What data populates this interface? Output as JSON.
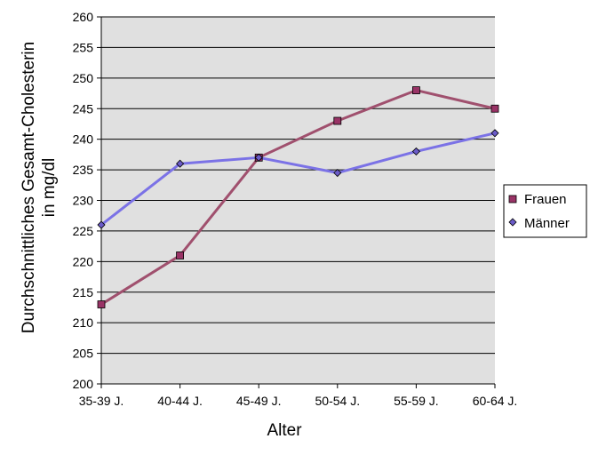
{
  "chart_data": {
    "type": "line",
    "xlabel": "Alter",
    "ylabel_line1": "Durchschnittliches Gesamt-Cholesterin",
    "ylabel_line2": "in mg/dl",
    "categories": [
      "35-39 J.",
      "40-44 J.",
      "45-49 J.",
      "50-54 J.",
      "55-59 J.",
      "60-64 J."
    ],
    "ylim": [
      200,
      260
    ],
    "yticks": [
      200,
      205,
      210,
      215,
      220,
      225,
      230,
      235,
      240,
      245,
      250,
      255,
      260
    ],
    "grid": true,
    "legend_position": "right",
    "series": [
      {
        "name": "Frauen",
        "values": [
          213,
          221,
          237,
          243,
          248,
          245
        ],
        "color": "#A0506E",
        "marker": "square",
        "marker_fill": "#993366"
      },
      {
        "name": "Männer",
        "values": [
          226,
          236,
          237,
          234.5,
          238,
          241
        ],
        "color": "#7B72E6",
        "marker": "diamond",
        "marker_fill": "#6B5BC8"
      }
    ],
    "plot_background": "#E0E0E0"
  }
}
